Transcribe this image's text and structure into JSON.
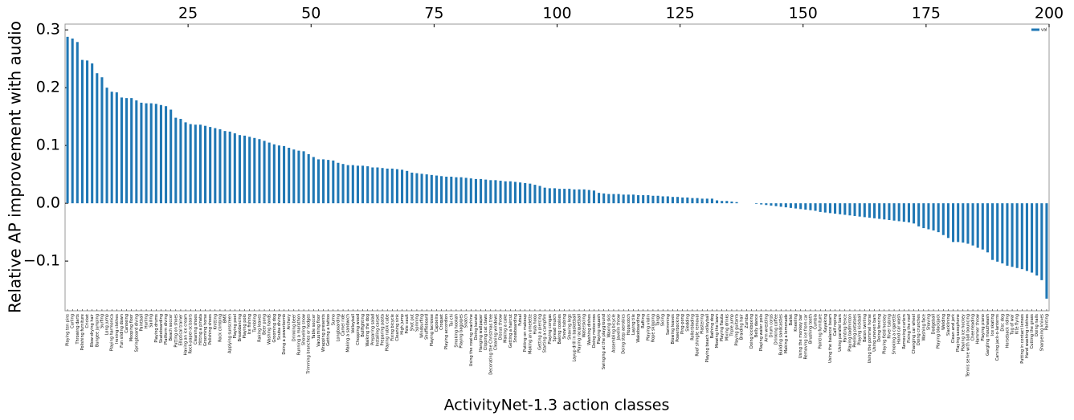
{
  "chart_data": {
    "type": "bar",
    "ylabel": "Relative AP improvement with audio",
    "xlabel": "ActivityNet-1.3 action classes",
    "categories": [
      "Playing ten pins",
      "Curling",
      "Throwing darts",
      "Polishing furniture",
      "Cricket",
      "Blow-drying hair",
      "Bungee jumping",
      "Surfing",
      "Long jump",
      "Playing harmonica",
      "Ironing clothes",
      "Fun sliding down",
      "Canoeing",
      "Mooping floor",
      "Springboard diving",
      "Paintball",
      "Hurling",
      "Sailing",
      "Playing drums",
      "Skateboarding",
      "Platform diving",
      "Beach soccer",
      "Putting on shoes",
      "Elliptical trainer",
      "Having an ice cream",
      "Rock-paper-scissors",
      "Cleaning shoes",
      "Hitting a pinata",
      "Grooming horse",
      "Polishing shoes",
      "Knitting",
      "Rock climbing",
      "BMX",
      "Applying sunscreen",
      "Playing pool",
      "Breakdancing",
      "Playing polo",
      "Ice fishing",
      "Tumbling",
      "Raking leaves",
      "Beer pong",
      "Washing hands",
      "Grooming dog",
      "Scuba diving",
      "Doing a powerbomb",
      "Archery",
      "Drinking beer",
      "Running a marathon",
      "Shoveling snow",
      "Trimming branches or hedges",
      "Table soccer",
      "Vacuuming floor",
      "Wrapping presents",
      "Getting a tattoo",
      "Sumo",
      "Longboarding",
      "Camel ride",
      "Making a sandwich",
      "Volleyball",
      "Chopping wood",
      "Bullfighting",
      "Walking the dog",
      "Preparing salad",
      "Installing carpet",
      "Preparing pasta",
      "Playing rubik cube",
      "Fixing bicycle",
      "Cleaning sink",
      "High jump",
      "Pole vault",
      "Shot put",
      "Spinning",
      "Windsurfing",
      "Shuffleboard",
      "Playing lacrosse",
      "Capoeira",
      "Croquet",
      "Playing accordion",
      "Tai chi",
      "Smoking hookah",
      "Playing bagpipes",
      "Snatch",
      "Using the rowing machine",
      "Doing karate",
      "Hanging wallpaper",
      "Clipping cat claws",
      "Decorating the Christmas tree",
      "Cleaning windows",
      "Discus throw",
      "Making a cake",
      "Getting a haircut",
      "Snowboarding",
      "Futsal",
      "Putting on makeup",
      "Making an omelette",
      "Hula hoop",
      "Getting a piercing",
      "Starting a campfire",
      "Playing congas",
      "Spread mulch",
      "Baking cookies",
      "Snow tubing",
      "Shaving legs",
      "Layup drill in basketball",
      "Playing racquetball",
      "Waterskiing",
      "Washing dishes",
      "Doing motocross",
      "Playing squash",
      "Swinging at the playground",
      "Waxing skis",
      "Assembling bicycle",
      "Javelin throw",
      "Doing step aerobics",
      "Hopscotch",
      "Laying tile",
      "Wakeboarding",
      "Rafting",
      "Playing violin",
      "Rope skipping",
      "Tango",
      "Skiing",
      "Swimming",
      "Blowing leaves",
      "Powerbocking",
      "Ping-pong",
      "Sledding",
      "Rollerblading",
      "Roof shingle removal",
      "Plastering",
      "Playing beach volleyball",
      "Bathing dog",
      "Mowing the lawn",
      "Playing flauta",
      "Mixing drinks",
      "Triple jump",
      "Playing guitarra",
      "Braiding hair",
      "Zumba",
      "Doing kickboxing",
      "Belly dance",
      "Playing water polo",
      "Arm wrestling",
      "Drum corps",
      "Drinking coffee",
      "Building sandcastles",
      "Making a lemonade",
      "Ballet",
      "Kneeling",
      "Using the monkey bar",
      "Removing ice from car",
      "Brushing teeth",
      "Cumbia",
      "Painting furniture",
      "Kayaking",
      "Using the balance beam",
      "Calf roping",
      "Using parallel bars",
      "Painting fence",
      "Playing badminton",
      "Peeling potatoes",
      "Playing kickball",
      "Baton twirling",
      "Using the pommel horse",
      "Using uneven bars",
      "Doing fencing",
      "Playing field hockey",
      "River tubing",
      "Smoking a cigarette",
      "Hand car wash",
      "Removing curlers",
      "Fixing the roof",
      "Changing car wheel",
      "Doing crunches",
      "Washing face",
      "Shaving",
      "Dodgeball",
      "Playing blackjack",
      "Welding",
      "Slacklining",
      "Clean and jerk",
      "Playing saxophone",
      "Playing ice hockey",
      "Tennis serve with ball bouncing",
      "Cheerleading",
      "Hammer throw",
      "Playing piano",
      "Gargling mouthwash",
      "Ice skating",
      "Carving jack-o-lanterns",
      "Disc dog",
      "Horseback riding",
      "Tug of war",
      "Kite flying",
      "Putting in contact lenses",
      "Hand washing clothes",
      "Cutting the grass",
      "Doing nails",
      "Sharpening knives",
      "Painting"
    ],
    "series": [
      {
        "name": "val",
        "color": "#1f77b4",
        "values": [
          0.288,
          0.285,
          0.279,
          0.248,
          0.247,
          0.242,
          0.225,
          0.218,
          0.2,
          0.193,
          0.192,
          0.183,
          0.182,
          0.182,
          0.178,
          0.174,
          0.173,
          0.173,
          0.172,
          0.17,
          0.168,
          0.162,
          0.148,
          0.146,
          0.14,
          0.137,
          0.136,
          0.136,
          0.134,
          0.132,
          0.13,
          0.128,
          0.125,
          0.124,
          0.121,
          0.118,
          0.117,
          0.115,
          0.113,
          0.111,
          0.108,
          0.105,
          0.102,
          0.1,
          0.099,
          0.096,
          0.093,
          0.091,
          0.09,
          0.085,
          0.08,
          0.076,
          0.076,
          0.075,
          0.074,
          0.07,
          0.068,
          0.066,
          0.066,
          0.065,
          0.065,
          0.064,
          0.062,
          0.062,
          0.061,
          0.06,
          0.06,
          0.059,
          0.058,
          0.056,
          0.053,
          0.052,
          0.051,
          0.05,
          0.049,
          0.048,
          0.047,
          0.046,
          0.046,
          0.045,
          0.045,
          0.044,
          0.043,
          0.042,
          0.042,
          0.041,
          0.04,
          0.04,
          0.039,
          0.038,
          0.038,
          0.037,
          0.036,
          0.035,
          0.034,
          0.032,
          0.03,
          0.027,
          0.026,
          0.026,
          0.025,
          0.025,
          0.025,
          0.024,
          0.024,
          0.024,
          0.023,
          0.022,
          0.018,
          0.017,
          0.016,
          0.016,
          0.016,
          0.015,
          0.015,
          0.015,
          0.014,
          0.014,
          0.014,
          0.013,
          0.013,
          0.012,
          0.012,
          0.011,
          0.011,
          0.01,
          0.01,
          0.009,
          0.009,
          0.008,
          0.008,
          0.008,
          0.005,
          0.004,
          0.004,
          0.003,
          0.002,
          0.0,
          0.0,
          0.0,
          -0.001,
          -0.002,
          -0.003,
          -0.004,
          -0.005,
          -0.006,
          -0.007,
          -0.008,
          -0.009,
          -0.01,
          -0.011,
          -0.012,
          -0.013,
          -0.015,
          -0.016,
          -0.017,
          -0.018,
          -0.019,
          -0.02,
          -0.021,
          -0.022,
          -0.023,
          -0.024,
          -0.025,
          -0.026,
          -0.027,
          -0.028,
          -0.029,
          -0.03,
          -0.031,
          -0.032,
          -0.033,
          -0.035,
          -0.04,
          -0.043,
          -0.045,
          -0.047,
          -0.05,
          -0.055,
          -0.06,
          -0.067,
          -0.067,
          -0.068,
          -0.07,
          -0.073,
          -0.077,
          -0.08,
          -0.085,
          -0.098,
          -0.101,
          -0.104,
          -0.108,
          -0.11,
          -0.112,
          -0.114,
          -0.117,
          -0.12,
          -0.125,
          -0.133,
          -0.165
        ]
      }
    ],
    "ylim": [
      -0.186,
      0.31
    ],
    "yticks": [
      {
        "value": -0.1,
        "label": "−0.1"
      },
      {
        "value": 0,
        "label": "0.0"
      },
      {
        "value": 0.1,
        "label": "0.1"
      },
      {
        "value": 0.2,
        "label": "0.2"
      },
      {
        "value": 0.3,
        "label": "0.3"
      }
    ],
    "x2lim": [
      0,
      200
    ],
    "x2ticks": [
      25,
      50,
      75,
      100,
      125,
      150,
      175,
      200
    ],
    "grid": false,
    "legend": "upper right"
  }
}
